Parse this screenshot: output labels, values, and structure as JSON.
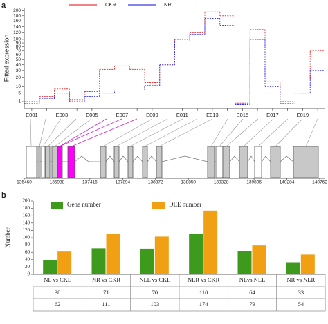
{
  "chart_data": [
    {
      "type": "step-line",
      "label": "a",
      "ylabel": "Fitted expression",
      "yscale": "sqrt",
      "categories": [
        "E001",
        null,
        "E003",
        null,
        "E005",
        null,
        "E007",
        null,
        "E009",
        null,
        "E011",
        null,
        "E013",
        null,
        "E015",
        null,
        "E017",
        null,
        "E019",
        null
      ],
      "series": [
        {
          "name": "CKR",
          "color": "#e8393a",
          "values": [
            1,
            3,
            8,
            1.5,
            6,
            32,
            38,
            32,
            14,
            40,
            100,
            120,
            195,
            180,
            0.6,
            130,
            15,
            1,
            18,
            70
          ]
        },
        {
          "name": "NR",
          "color": "#3a3ae8",
          "values": [
            0.5,
            2,
            5,
            1,
            3,
            5,
            7,
            7,
            11,
            40,
            95,
            115,
            170,
            145,
            0.3,
            100,
            10,
            0.5,
            5,
            30
          ]
        }
      ],
      "ylim": [
        0,
        210
      ],
      "yticks": [
        1,
        5,
        10,
        20,
        30,
        40,
        50,
        60,
        70,
        80,
        90,
        100,
        120,
        140,
        160,
        180,
        200
      ],
      "xlim": [
        136460,
        140762
      ],
      "xticks": [
        136460,
        136938,
        137416,
        137894,
        138372,
        138850,
        139328,
        139806,
        140284,
        140762
      ]
    },
    {
      "type": "bar",
      "label": "b",
      "ylabel": "Number",
      "categories": [
        "NL vs CKL",
        "NR vs CKR",
        "NLL vs CKL",
        "NLR vs CKR",
        "NLvs NLL",
        "NR vs NLR"
      ],
      "series": [
        {
          "name": "Gene number",
          "color": "#3d9a1c",
          "values": [
            38,
            71,
            70,
            110,
            64,
            33
          ]
        },
        {
          "name": "DEE number",
          "color": "#f0a012",
          "values": [
            62,
            111,
            103,
            174,
            79,
            54
          ]
        }
      ],
      "ylim": [
        0,
        200
      ],
      "yticks": [
        0,
        20,
        40,
        60,
        80,
        100,
        120,
        140,
        160,
        180,
        200
      ]
    }
  ]
}
